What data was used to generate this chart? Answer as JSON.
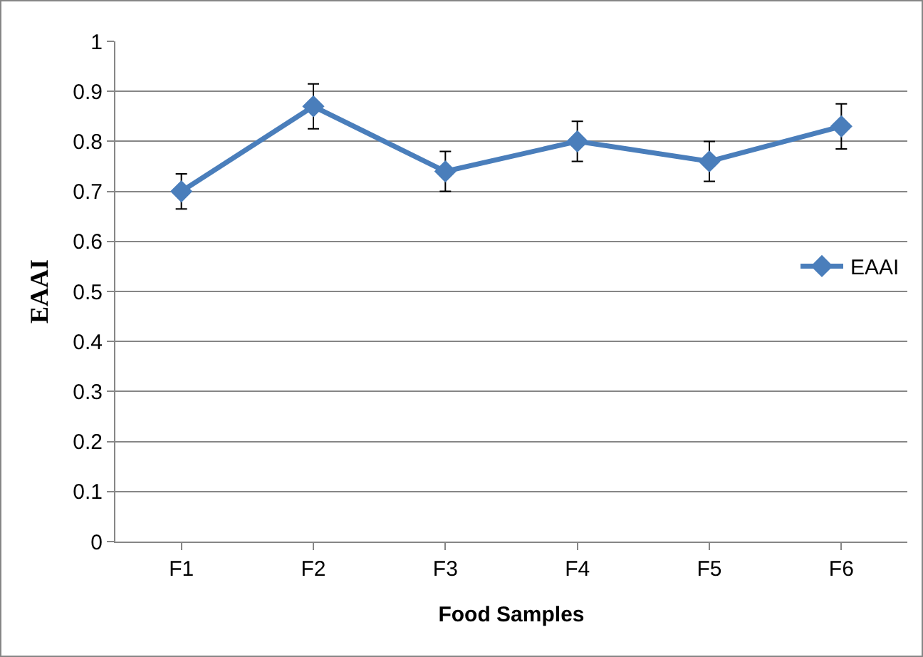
{
  "chart_data": {
    "type": "line",
    "xlabel": "Food Samples",
    "ylabel": "EAAI",
    "categories": [
      "F1",
      "F2",
      "F3",
      "F4",
      "F5",
      "F6"
    ],
    "series": [
      {
        "name": "EAAI",
        "color": "#4a7ebb",
        "values": [
          0.7,
          0.87,
          0.74,
          0.8,
          0.76,
          0.83
        ],
        "errors": [
          0.035,
          0.045,
          0.04,
          0.04,
          0.04,
          0.045
        ]
      }
    ],
    "ylim": [
      0,
      1
    ],
    "yticks": [
      0,
      0.1,
      0.2,
      0.3,
      0.4,
      0.5,
      0.6,
      0.7,
      0.8,
      0.9,
      1
    ],
    "grid": "y",
    "legend": "right",
    "marker": "diamond",
    "line_style": "solid"
  }
}
